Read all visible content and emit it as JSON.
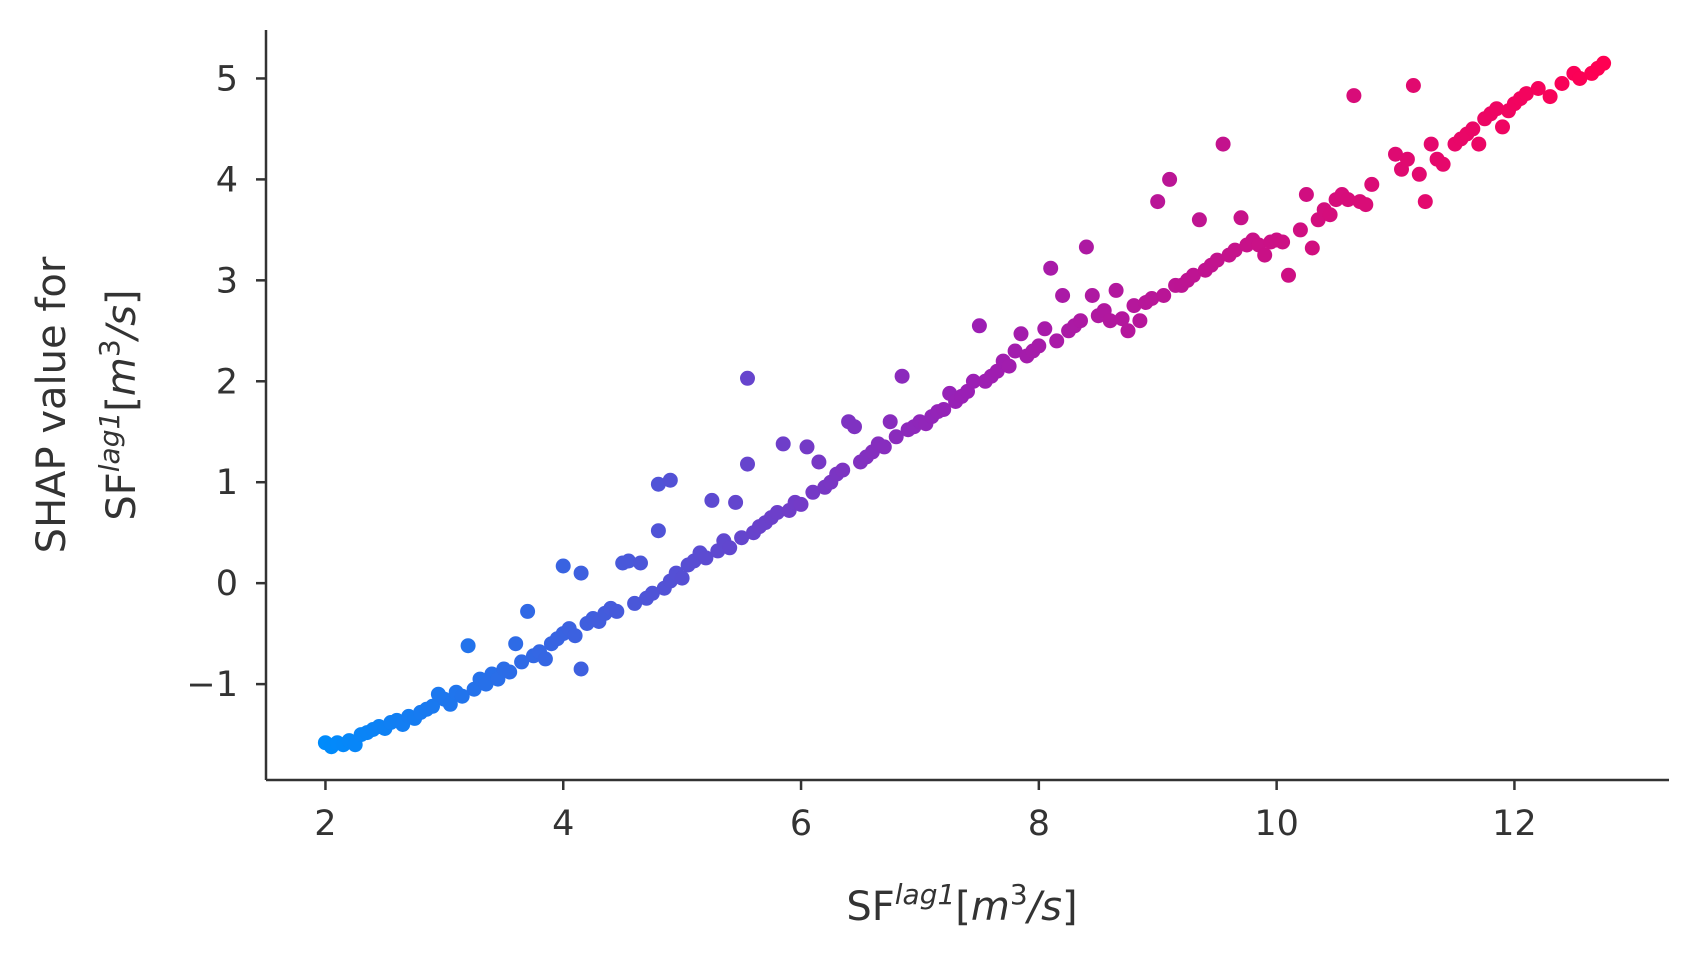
{
  "chart_data": {
    "type": "scatter",
    "xlabel": {
      "base": "SF",
      "sup": "lag1",
      "unit_open": "[",
      "unit_main": "m",
      "unit_sup": "3",
      "unit_rest": "/s",
      "unit_close": "]"
    },
    "ylabel": {
      "line1": "SHAP value for",
      "base": "SF",
      "sup": "lag1",
      "unit_open": "[",
      "unit_main": "m",
      "unit_sup": "3",
      "unit_rest": "/s",
      "unit_close": "]"
    },
    "xlim": [
      1.5,
      13.3
    ],
    "ylim": [
      -1.95,
      5.48
    ],
    "x_ticks": [
      2,
      4,
      6,
      8,
      10,
      12
    ],
    "x_tick_labels": [
      "2",
      "4",
      "6",
      "8",
      "10",
      "12"
    ],
    "y_ticks": [
      -1,
      0,
      1,
      2,
      3,
      4,
      5
    ],
    "y_tick_labels": [
      "−1",
      "0",
      "1",
      "2",
      "3",
      "4",
      "5"
    ],
    "grid": false,
    "color_low": "#008bfb",
    "color_high": "#ff0052",
    "color_mid": "#9a1fb5",
    "points": [
      [
        2.0,
        -1.58
      ],
      [
        2.05,
        -1.62
      ],
      [
        2.1,
        -1.58
      ],
      [
        2.15,
        -1.6
      ],
      [
        2.2,
        -1.56
      ],
      [
        2.25,
        -1.6
      ],
      [
        2.3,
        -1.5
      ],
      [
        2.35,
        -1.48
      ],
      [
        2.4,
        -1.45
      ],
      [
        2.45,
        -1.42
      ],
      [
        2.5,
        -1.44
      ],
      [
        2.55,
        -1.38
      ],
      [
        2.6,
        -1.36
      ],
      [
        2.65,
        -1.4
      ],
      [
        2.7,
        -1.32
      ],
      [
        2.75,
        -1.34
      ],
      [
        2.8,
        -1.28
      ],
      [
        2.85,
        -1.25
      ],
      [
        2.9,
        -1.22
      ],
      [
        2.95,
        -1.1
      ],
      [
        3.0,
        -1.15
      ],
      [
        3.05,
        -1.2
      ],
      [
        3.1,
        -1.08
      ],
      [
        3.15,
        -1.12
      ],
      [
        3.2,
        -0.62
      ],
      [
        3.25,
        -1.05
      ],
      [
        3.3,
        -0.95
      ],
      [
        3.35,
        -1.0
      ],
      [
        3.4,
        -0.9
      ],
      [
        3.45,
        -0.95
      ],
      [
        3.5,
        -0.85
      ],
      [
        3.55,
        -0.88
      ],
      [
        3.6,
        -0.6
      ],
      [
        3.65,
        -0.78
      ],
      [
        3.7,
        -0.28
      ],
      [
        3.75,
        -0.72
      ],
      [
        3.8,
        -0.68
      ],
      [
        3.85,
        -0.75
      ],
      [
        3.9,
        -0.6
      ],
      [
        3.95,
        -0.55
      ],
      [
        4.0,
        -0.5
      ],
      [
        4.0,
        0.17
      ],
      [
        4.05,
        -0.45
      ],
      [
        4.1,
        -0.52
      ],
      [
        4.15,
        -0.85
      ],
      [
        4.15,
        0.1
      ],
      [
        4.2,
        -0.4
      ],
      [
        4.25,
        -0.35
      ],
      [
        4.3,
        -0.38
      ],
      [
        4.35,
        -0.3
      ],
      [
        4.4,
        -0.25
      ],
      [
        4.45,
        -0.28
      ],
      [
        4.5,
        0.2
      ],
      [
        4.55,
        0.22
      ],
      [
        4.6,
        -0.2
      ],
      [
        4.65,
        0.2
      ],
      [
        4.7,
        -0.15
      ],
      [
        4.75,
        -0.1
      ],
      [
        4.8,
        0.52
      ],
      [
        4.8,
        0.98
      ],
      [
        4.85,
        -0.05
      ],
      [
        4.9,
        0.02
      ],
      [
        4.9,
        1.02
      ],
      [
        4.95,
        0.1
      ],
      [
        5.0,
        0.05
      ],
      [
        5.05,
        0.18
      ],
      [
        5.1,
        0.22
      ],
      [
        5.15,
        0.3
      ],
      [
        5.2,
        0.25
      ],
      [
        5.25,
        0.82
      ],
      [
        5.3,
        0.32
      ],
      [
        5.35,
        0.42
      ],
      [
        5.4,
        0.35
      ],
      [
        5.45,
        0.8
      ],
      [
        5.5,
        0.45
      ],
      [
        5.55,
        1.18
      ],
      [
        5.55,
        2.03
      ],
      [
        5.6,
        0.5
      ],
      [
        5.65,
        0.56
      ],
      [
        5.7,
        0.6
      ],
      [
        5.75,
        0.65
      ],
      [
        5.8,
        0.7
      ],
      [
        5.85,
        1.38
      ],
      [
        5.9,
        0.72
      ],
      [
        5.95,
        0.8
      ],
      [
        6.0,
        0.78
      ],
      [
        6.05,
        1.35
      ],
      [
        6.1,
        0.9
      ],
      [
        6.15,
        1.2
      ],
      [
        6.2,
        0.95
      ],
      [
        6.25,
        1.0
      ],
      [
        6.3,
        1.08
      ],
      [
        6.35,
        1.12
      ],
      [
        6.4,
        1.6
      ],
      [
        6.45,
        1.55
      ],
      [
        6.5,
        1.2
      ],
      [
        6.55,
        1.25
      ],
      [
        6.6,
        1.3
      ],
      [
        6.65,
        1.38
      ],
      [
        6.7,
        1.35
      ],
      [
        6.75,
        1.6
      ],
      [
        6.8,
        1.45
      ],
      [
        6.85,
        2.05
      ],
      [
        6.9,
        1.52
      ],
      [
        6.95,
        1.55
      ],
      [
        7.0,
        1.6
      ],
      [
        7.05,
        1.58
      ],
      [
        7.1,
        1.65
      ],
      [
        7.15,
        1.7
      ],
      [
        7.2,
        1.72
      ],
      [
        7.25,
        1.88
      ],
      [
        7.3,
        1.8
      ],
      [
        7.35,
        1.85
      ],
      [
        7.4,
        1.9
      ],
      [
        7.45,
        2.0
      ],
      [
        7.5,
        2.55
      ],
      [
        7.55,
        2.0
      ],
      [
        7.6,
        2.05
      ],
      [
        7.65,
        2.1
      ],
      [
        7.7,
        2.2
      ],
      [
        7.75,
        2.15
      ],
      [
        7.8,
        2.3
      ],
      [
        7.85,
        2.47
      ],
      [
        7.9,
        2.25
      ],
      [
        7.95,
        2.3
      ],
      [
        8.0,
        2.35
      ],
      [
        8.05,
        2.52
      ],
      [
        8.1,
        3.12
      ],
      [
        8.15,
        2.4
      ],
      [
        8.2,
        2.85
      ],
      [
        8.25,
        2.5
      ],
      [
        8.3,
        2.55
      ],
      [
        8.35,
        2.6
      ],
      [
        8.4,
        3.33
      ],
      [
        8.45,
        2.85
      ],
      [
        8.5,
        2.65
      ],
      [
        8.55,
        2.7
      ],
      [
        8.6,
        2.6
      ],
      [
        8.65,
        2.9
      ],
      [
        8.7,
        2.62
      ],
      [
        8.75,
        2.5
      ],
      [
        8.8,
        2.75
      ],
      [
        8.85,
        2.6
      ],
      [
        8.9,
        2.78
      ],
      [
        8.95,
        2.82
      ],
      [
        9.0,
        3.78
      ],
      [
        9.05,
        2.85
      ],
      [
        9.1,
        4.0
      ],
      [
        9.15,
        2.95
      ],
      [
        9.2,
        2.95
      ],
      [
        9.25,
        3.0
      ],
      [
        9.3,
        3.05
      ],
      [
        9.35,
        3.6
      ],
      [
        9.4,
        3.1
      ],
      [
        9.45,
        3.15
      ],
      [
        9.5,
        3.2
      ],
      [
        9.55,
        4.35
      ],
      [
        9.6,
        3.25
      ],
      [
        9.65,
        3.3
      ],
      [
        9.7,
        3.62
      ],
      [
        9.75,
        3.35
      ],
      [
        9.8,
        3.4
      ],
      [
        9.85,
        3.35
      ],
      [
        9.9,
        3.25
      ],
      [
        9.95,
        3.38
      ],
      [
        10.0,
        3.4
      ],
      [
        10.05,
        3.38
      ],
      [
        10.1,
        3.05
      ],
      [
        10.2,
        3.5
      ],
      [
        10.25,
        3.85
      ],
      [
        10.3,
        3.32
      ],
      [
        10.35,
        3.6
      ],
      [
        10.4,
        3.7
      ],
      [
        10.45,
        3.65
      ],
      [
        10.5,
        3.8
      ],
      [
        10.55,
        3.85
      ],
      [
        10.6,
        3.8
      ],
      [
        10.65,
        4.83
      ],
      [
        10.7,
        3.78
      ],
      [
        10.75,
        3.75
      ],
      [
        10.8,
        3.95
      ],
      [
        11.0,
        4.25
      ],
      [
        11.05,
        4.1
      ],
      [
        11.1,
        4.2
      ],
      [
        11.15,
        4.93
      ],
      [
        11.2,
        4.05
      ],
      [
        11.25,
        3.78
      ],
      [
        11.3,
        4.35
      ],
      [
        11.35,
        4.2
      ],
      [
        11.4,
        4.15
      ],
      [
        11.5,
        4.35
      ],
      [
        11.55,
        4.4
      ],
      [
        11.6,
        4.45
      ],
      [
        11.65,
        4.5
      ],
      [
        11.7,
        4.35
      ],
      [
        11.75,
        4.6
      ],
      [
        11.8,
        4.65
      ],
      [
        11.85,
        4.7
      ],
      [
        11.9,
        4.52
      ],
      [
        11.95,
        4.68
      ],
      [
        12.0,
        4.75
      ],
      [
        12.05,
        4.8
      ],
      [
        12.1,
        4.85
      ],
      [
        12.2,
        4.9
      ],
      [
        12.3,
        4.82
      ],
      [
        12.4,
        4.95
      ],
      [
        12.5,
        5.05
      ],
      [
        12.55,
        5.0
      ],
      [
        12.65,
        5.05
      ],
      [
        12.7,
        5.1
      ],
      [
        12.75,
        5.15
      ]
    ]
  }
}
